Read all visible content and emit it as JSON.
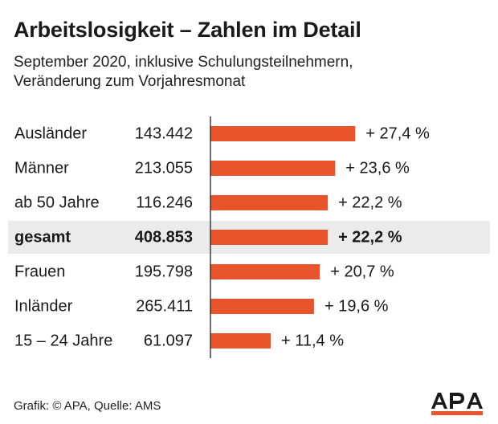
{
  "title": "Arbeitslosigkeit – Zahlen im Detail",
  "subtitle_lines": [
    "September 2020, inklusive Schulungsteilnehmern,",
    "Veränderung zum Vorjahresmonat"
  ],
  "source": "Grafik: © APA, Quelle: AMS",
  "logo_text": "APA",
  "colors": {
    "bar": "#e8552c",
    "highlight_row": "#ebebeb",
    "axis": "#222222",
    "logo_stripe": "#e8552c"
  },
  "chart_data": {
    "type": "bar",
    "orientation": "horizontal",
    "categories": [
      "Ausländer",
      "Männer",
      "ab 50 Jahre",
      "gesamt",
      "Frauen",
      "Inländer",
      "15 – 24 Jahre"
    ],
    "counts": [
      "143.442",
      "213.055",
      "116.246",
      "408.853",
      "195.798",
      "265.411",
      "61.097"
    ],
    "values": [
      27.4,
      23.6,
      22.2,
      22.2,
      20.7,
      19.6,
      11.4
    ],
    "value_labels": [
      "+ 27,4 %",
      "+ 23,6 %",
      "+ 22,2 %",
      "+ 22,2 %",
      "+ 20,7 %",
      "+ 19,6 %",
      "+ 11,4 %"
    ],
    "highlight": "gesamt",
    "xlim": [
      0,
      30
    ],
    "grid": false
  }
}
